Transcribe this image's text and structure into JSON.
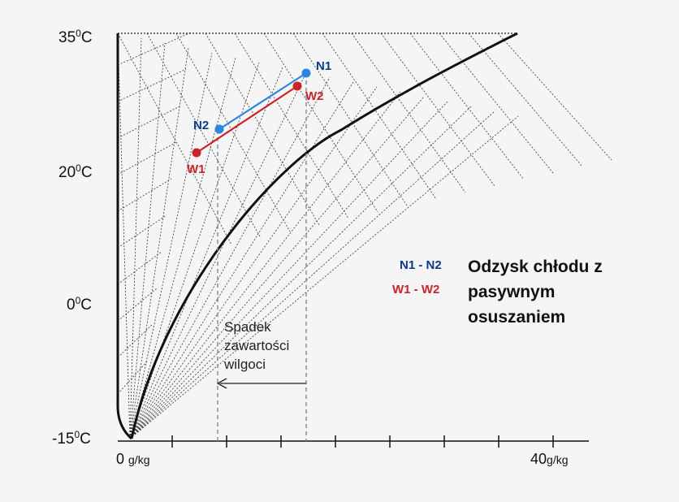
{
  "y_labels": [
    {
      "base": "35",
      "sup": "0",
      "unit": "C",
      "value": 35
    },
    {
      "base": "20",
      "sup": "0",
      "unit": "C",
      "value": 20
    },
    {
      "base": "0",
      "sup": "0",
      "unit": "C",
      "value": 0
    },
    {
      "base": "-15",
      "sup": "0",
      "unit": "C",
      "value": -15
    }
  ],
  "x_labels": [
    {
      "text": "0",
      "unit": "g/kg",
      "value": 0
    },
    {
      "text": "40",
      "unit": "g/kg",
      "value": 40
    }
  ],
  "points": [
    {
      "id": "N1",
      "label": "N1",
      "color": "#2a86e0",
      "label_color": "#0b3a8c"
    },
    {
      "id": "N2",
      "label": "N2",
      "color": "#2a86e0",
      "label_color": "#0b3a8c"
    },
    {
      "id": "W1",
      "label": "W1",
      "color": "#cc2229",
      "label_color": "#cc2229"
    },
    {
      "id": "W2",
      "label": "W2",
      "color": "#cc2229",
      "label_color": "#cc2229"
    }
  ],
  "legend": {
    "key_blue": "N1 - N2",
    "key_red": "W1 - W2",
    "title_lines": [
      "Odzysk chłodu z",
      "pasywnym",
      "osuszaniem"
    ]
  },
  "annotation": {
    "lines": [
      "Spadek",
      "zawartości",
      "wilgoci"
    ]
  },
  "colors": {
    "blue": "#2a86e0",
    "blue_text": "#0b3a8c",
    "red": "#cc2229",
    "background": "#f5f5f5"
  }
}
